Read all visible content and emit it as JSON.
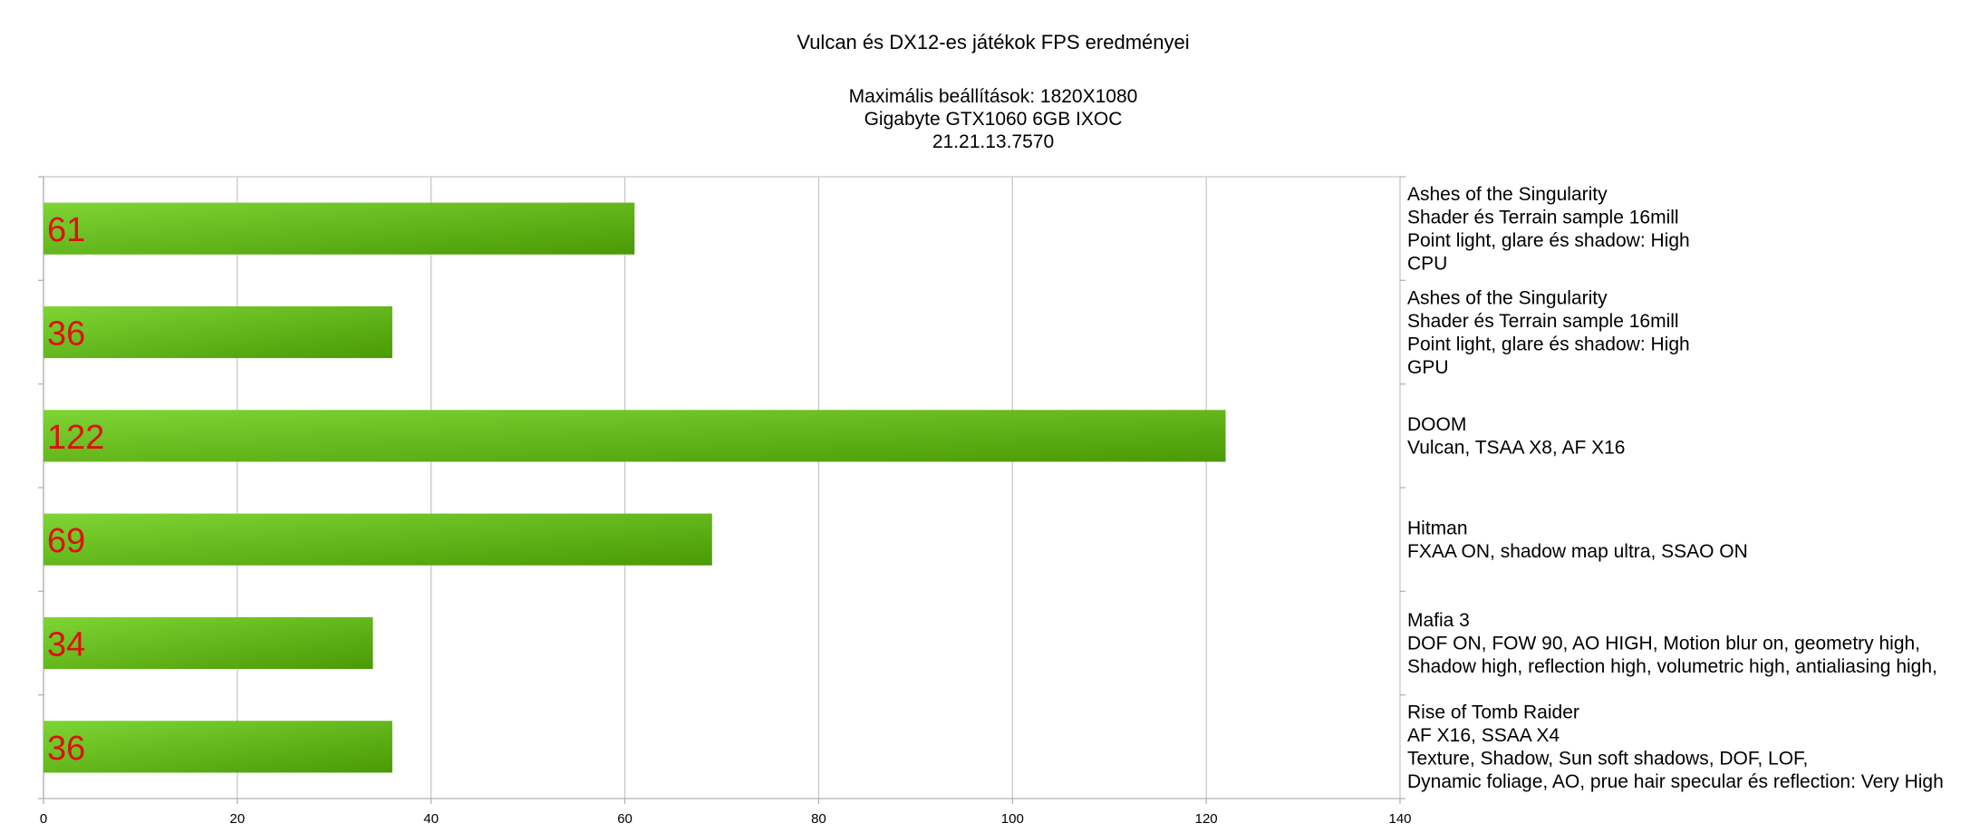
{
  "chart_data": {
    "type": "bar",
    "orientation": "horizontal",
    "title": "Vulcan és DX12-es játékok FPS eredményei",
    "subtitle_lines": [
      "Maximális beállítások: 1820X1080",
      "Gigabyte GTX1060 6GB IXOC",
      "21.21.13.7570"
    ],
    "categories": [
      [
        "Ashes of the Singularity",
        "Shader és Terrain sample 16mill",
        "Point light, glare és shadow: High",
        "CPU"
      ],
      [
        "Ashes of the Singularity",
        "Shader és Terrain sample 16mill",
        "Point light, glare és shadow: High",
        "GPU"
      ],
      [
        "DOOM",
        "Vulcan, TSAA X8, AF X16"
      ],
      [
        "Hitman",
        "FXAA ON, shadow map ultra, SSAO ON"
      ],
      [
        "Mafia 3",
        "DOF ON, FOW 90, AO HIGH, Motion blur on, geometry high,",
        "Shadow high, reflection high, volumetric high, antialiasing high,"
      ],
      [
        "Rise of Tomb Raider",
        "AF X16, SSAA X4",
        "Texture, Shadow, Sun soft shadows, DOF, LOF,",
        "Dynamic foliage, AO, prue hair specular és reflection: Very High"
      ]
    ],
    "values": [
      61,
      36,
      122,
      69,
      34,
      36
    ],
    "data_labels": [
      "61",
      "36",
      "122",
      "69",
      "34",
      "36"
    ],
    "xlim": [
      0,
      140
    ],
    "x_ticks": [
      0,
      20,
      40,
      60,
      80,
      100,
      120,
      140
    ],
    "x_tick_labels": [
      "0",
      "20",
      "40",
      "60",
      "80",
      "100",
      "120",
      "140"
    ],
    "grid": true,
    "category_labels_position": "right",
    "colors": {
      "bar_light": "#7ed534",
      "bar_dark": "#4a9a05",
      "data_label": "#e01010",
      "grid": "#c8c8c8",
      "axis": "#b3b3b3"
    }
  }
}
